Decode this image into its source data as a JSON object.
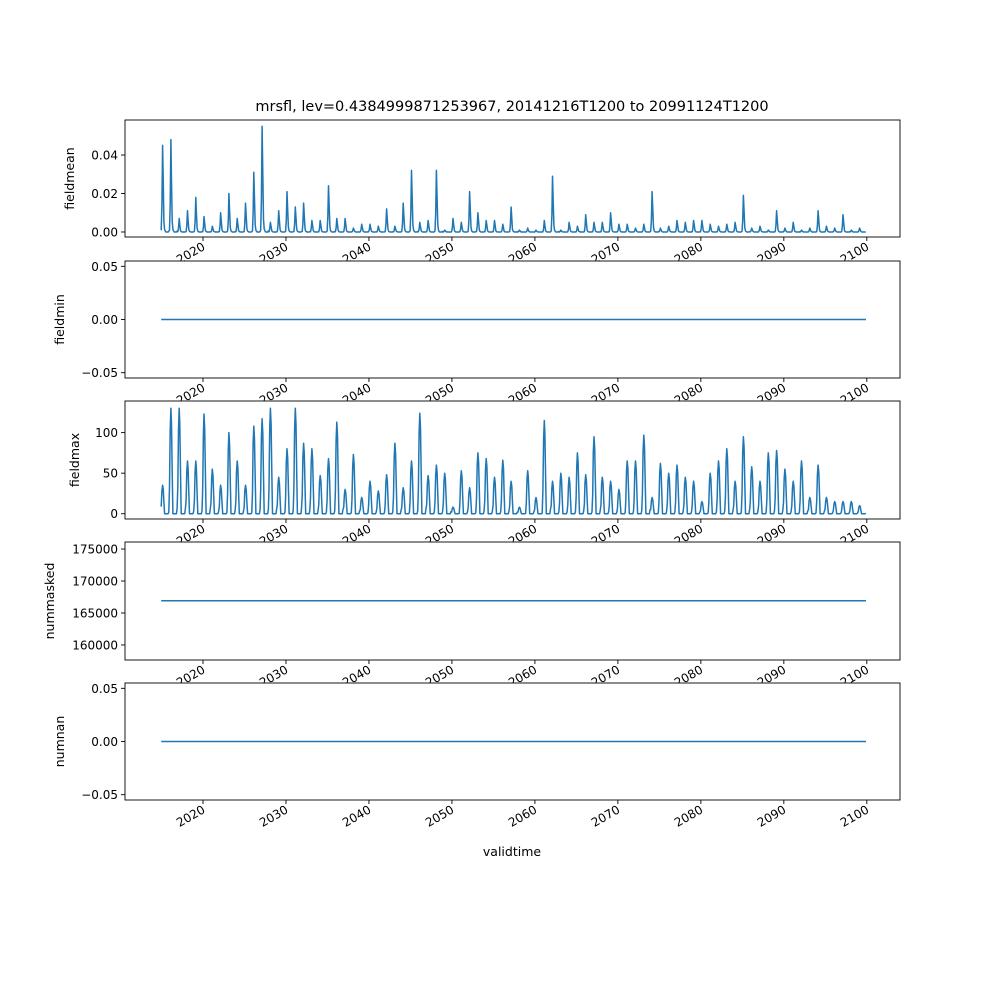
{
  "chart_data": {
    "type": "line",
    "title": "mrsfl, lev=0.4384999871253967, 20141216T1200 to 20991124T1200",
    "xlabel": "validtime",
    "xlim": [
      2010.6,
      2104.0
    ],
    "xticks": [
      2020,
      2030,
      2040,
      2050,
      2060,
      2070,
      2080,
      2090,
      2100
    ],
    "xtick_labels": [
      "2020",
      "2030",
      "2040",
      "2050",
      "2060",
      "2070",
      "2080",
      "2090",
      "2100"
    ],
    "start_year": 2015,
    "line_color": "#1f77b4",
    "panels": [
      {
        "ylabel": "fieldmean",
        "ylim": [
          -0.0026,
          0.0582
        ],
        "yticks": [
          0,
          0.02,
          0.04
        ],
        "ytick_labels": [
          "0.00",
          "0.02",
          "0.04"
        ],
        "kind": "spike",
        "annual_peaks": [
          0.045,
          0.048,
          0.007,
          0.011,
          0.018,
          0.008,
          0.003,
          0.01,
          0.02,
          0.007,
          0.015,
          0.031,
          0.055,
          0.005,
          0.011,
          0.021,
          0.013,
          0.015,
          0.006,
          0.006,
          0.024,
          0.007,
          0.007,
          0.002,
          0.004,
          0.004,
          0.003,
          0.012,
          0.003,
          0.015,
          0.032,
          0.005,
          0.006,
          0.032,
          0.001,
          0.007,
          0.005,
          0.021,
          0.01,
          0.006,
          0.006,
          0.004,
          0.013,
          0.001,
          0.002,
          0.001,
          0.006,
          0.029,
          0.001,
          0.005,
          0.003,
          0.009,
          0.005,
          0.005,
          0.01,
          0.004,
          0.004,
          0.002,
          0.004,
          0.021,
          0.002,
          0.003,
          0.006,
          0.005,
          0.006,
          0.006,
          0.004,
          0.003,
          0.004,
          0.005,
          0.019,
          0.002,
          0.003,
          0.001,
          0.011,
          0.002,
          0.005,
          0.001,
          0.002,
          0.011,
          0.003,
          0.002,
          0.009,
          0.001,
          0.002
        ]
      },
      {
        "ylabel": "fieldmin",
        "ylim": [
          -0.055,
          0.055
        ],
        "yticks": [
          -0.05,
          0,
          0.05
        ],
        "ytick_labels": [
          "−0.05",
          "0.00",
          "0.05"
        ],
        "kind": "constant",
        "value": 0
      },
      {
        "ylabel": "fieldmax",
        "ylim": [
          -6.5,
          139
        ],
        "yticks": [
          0,
          50,
          100
        ],
        "ytick_labels": [
          "0",
          "50",
          "100"
        ],
        "kind": "plateau",
        "annual_peaks": [
          35,
          130,
          130,
          65,
          65,
          123,
          55,
          35,
          100,
          65,
          35,
          108,
          117,
          130,
          45,
          80,
          130,
          87,
          80,
          47,
          68,
          113,
          30,
          73,
          20,
          40,
          28,
          48,
          87,
          32,
          65,
          124,
          47,
          60,
          50,
          8,
          53,
          32,
          75,
          68,
          45,
          66,
          40,
          8,
          53,
          20,
          115,
          40,
          50,
          45,
          75,
          48,
          95,
          45,
          40,
          30,
          65,
          65,
          97,
          20,
          62,
          50,
          60,
          45,
          40,
          15,
          50,
          65,
          80,
          40,
          95,
          58,
          40,
          75,
          78,
          55,
          40,
          65,
          20,
          60,
          20,
          15,
          15,
          15,
          10
        ]
      },
      {
        "ylabel": "nummasked",
        "ylim": [
          157650,
          176100
        ],
        "yticks": [
          160000,
          165000,
          170000,
          175000
        ],
        "ytick_labels": [
          "160000",
          "165000",
          "170000",
          "175000"
        ],
        "kind": "constant",
        "value": 166900
      },
      {
        "ylabel": "numnan",
        "ylim": [
          -0.055,
          0.055
        ],
        "yticks": [
          -0.05,
          0,
          0.05
        ],
        "ytick_labels": [
          "−0.05",
          "0.00",
          "0.05"
        ],
        "kind": "constant",
        "value": 0
      }
    ]
  }
}
